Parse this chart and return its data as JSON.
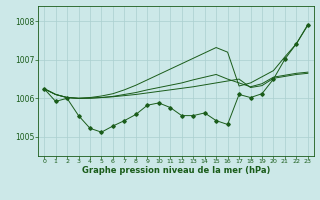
{
  "title": "Graphe pression niveau de la mer (hPa)",
  "bg_color": "#cce8e8",
  "grid_color": "#aacfcf",
  "line_color": "#1a5c1a",
  "xlim": [
    -0.5,
    23.5
  ],
  "ylim": [
    1004.5,
    1008.4
  ],
  "yticks": [
    1005,
    1006,
    1007,
    1008
  ],
  "xticks": [
    0,
    1,
    2,
    3,
    4,
    5,
    6,
    7,
    8,
    9,
    10,
    11,
    12,
    13,
    14,
    15,
    16,
    17,
    18,
    19,
    20,
    21,
    22,
    23
  ],
  "smooth_line1": [
    1006.25,
    1006.1,
    1006.02,
    1006.0,
    1006.01,
    1006.02,
    1006.04,
    1006.07,
    1006.1,
    1006.14,
    1006.18,
    1006.22,
    1006.26,
    1006.3,
    1006.35,
    1006.4,
    1006.45,
    1006.5,
    1006.28,
    1006.33,
    1006.52,
    1006.57,
    1006.62,
    1006.65
  ],
  "smooth_line2": [
    1006.25,
    1006.1,
    1006.02,
    1006.0,
    1006.02,
    1006.06,
    1006.12,
    1006.22,
    1006.34,
    1006.48,
    1006.62,
    1006.76,
    1006.9,
    1007.04,
    1007.18,
    1007.32,
    1007.2,
    1006.32,
    1006.4,
    1006.56,
    1006.72,
    1007.08,
    1007.42,
    1007.92
  ],
  "smooth_line3": [
    1006.25,
    1006.1,
    1006.02,
    1006.0,
    1006.0,
    1006.02,
    1006.05,
    1006.1,
    1006.15,
    1006.22,
    1006.28,
    1006.34,
    1006.4,
    1006.48,
    1006.55,
    1006.62,
    1006.5,
    1006.4,
    1006.3,
    1006.38,
    1006.55,
    1006.6,
    1006.65,
    1006.68
  ],
  "main_line": [
    1006.25,
    1005.92,
    1006.0,
    1005.55,
    1005.22,
    1005.12,
    1005.28,
    1005.42,
    1005.58,
    1005.82,
    1005.88,
    1005.76,
    1005.55,
    1005.55,
    1005.62,
    1005.42,
    1005.32,
    1006.1,
    1006.02,
    1006.12,
    1006.5,
    1007.02,
    1007.42,
    1007.9
  ]
}
